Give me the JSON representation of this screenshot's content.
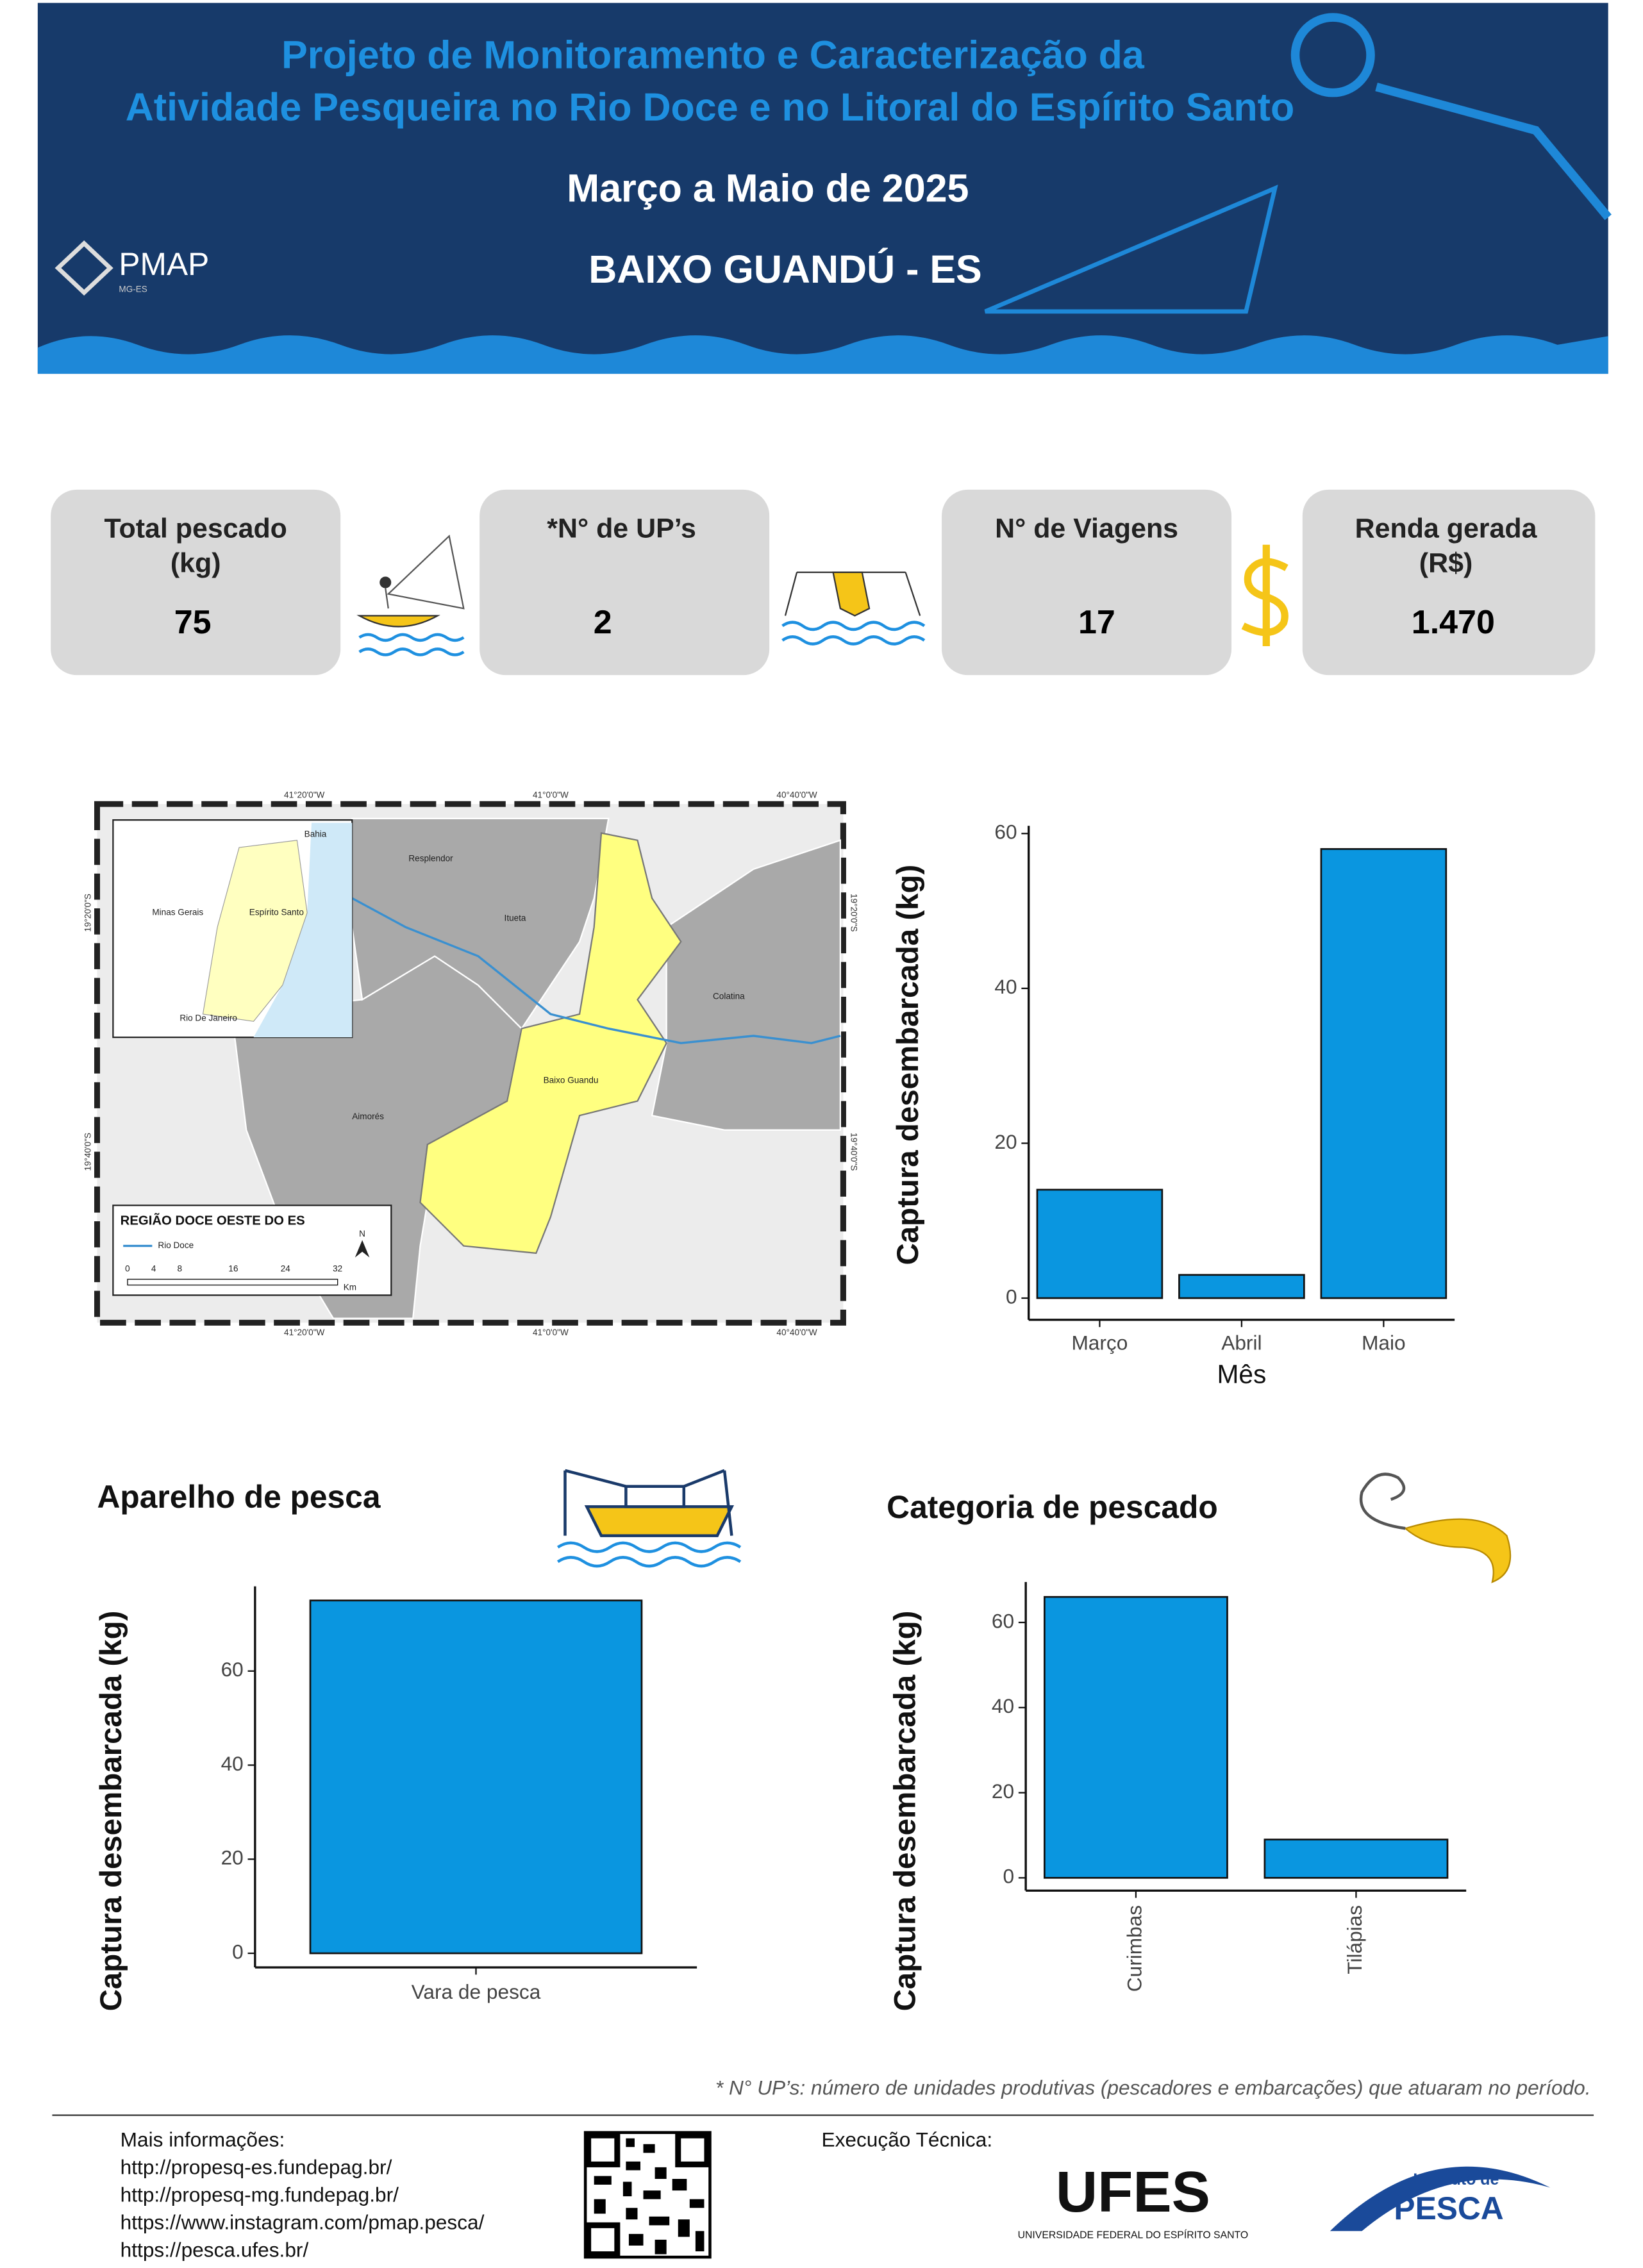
{
  "header": {
    "title_lines": [
      "Projeto de Monitoramento e Caracterização da",
      "Atividade Pesqueira no Rio Doce e no Litoral do Espírito Santo"
    ],
    "period": "Março a Maio de 2025",
    "location": "BAIXO GUANDÚ - ES",
    "logo": "PMAP",
    "logo_sub": "MG-ES"
  },
  "stats": [
    {
      "label_lines": [
        "Total pescado",
        "(kg)"
      ],
      "value": "75"
    },
    {
      "label_lines": [
        "*N° de UP’s"
      ],
      "value": "2"
    },
    {
      "label_lines": [
        "N°  de Viagens"
      ],
      "value": "17"
    },
    {
      "label_lines": [
        "Renda gerada",
        "(R$)"
      ],
      "value": "1.470"
    }
  ],
  "map": {
    "lon_labels": [
      "41°20'0\"W",
      "41°0'0\"W",
      "40°40'0\"W"
    ],
    "lat_labels": [
      "19°20'0\"S",
      "19°40'0\"S"
    ],
    "places": [
      "Bahia",
      "Minas Gerais",
      "Espírito Santo",
      "Rio De Janeiro",
      "Resplendor",
      "Itueta",
      "Colatina",
      "Baixo Guandu",
      "Aimorés"
    ],
    "legend_title": "REGIÃO DOCE OESTE DO ES",
    "legend_river": "Rio Doce",
    "scale": [
      "0",
      "4",
      "8",
      "16",
      "24",
      "32"
    ],
    "scale_unit": "Km",
    "north": "N"
  },
  "chart_data": [
    {
      "type": "bar",
      "categories": [
        "Março",
        "Abril",
        "Maio"
      ],
      "values": [
        14,
        3,
        58
      ],
      "color": "#0a96e0",
      "x_label": "Mês",
      "y_label": "Captura desembarcada (kg)",
      "ylim": [
        -2.8,
        61
      ],
      "yticks": [
        0,
        20,
        40,
        60
      ]
    },
    {
      "type": "bar",
      "title": "Aparelho de pesca",
      "categories": [
        "Vara de pesca"
      ],
      "values": [
        75
      ],
      "color": "#0a96e0",
      "y_label": "Captura desembarcada (kg)",
      "ylim": [
        -3,
        78
      ],
      "yticks": [
        0,
        20,
        40,
        60
      ]
    },
    {
      "type": "bar",
      "title": "Categoria de pescado",
      "categories": [
        "Curimbas",
        "Tilápias"
      ],
      "values": [
        66,
        9
      ],
      "color": "#0a96e0",
      "y_label": "Captura desembarcada (kg)",
      "ylim": [
        -3,
        69.5
      ],
      "yticks": [
        0,
        20,
        40,
        60
      ]
    }
  ],
  "footnote": "* N° UP’s: número de unidades produtivas (pescadores e embarcações) que atuaram no período.",
  "footer": {
    "info_title": "Mais informações:",
    "links": [
      "http://propesq-es.fundepag.br/",
      "http://propesq-mg.fundepag.br/",
      "https://www.instagram.com/pmap.pesca/",
      "https://pesca.ufes.br/"
    ],
    "execution": "Execução Técnica:",
    "ufes": "UFES",
    "ufes_name": "UNIVERSIDADE FEDERAL DO ESPÍRITO SANTO",
    "pesca_top": "Instituto de",
    "pesca": "PESCA"
  }
}
